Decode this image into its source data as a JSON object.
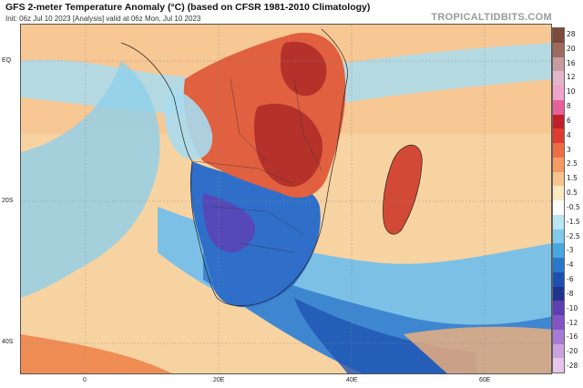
{
  "header": {
    "title": "GFS 2-meter Temperature Anomaly (°C) (based on CFSR 1981-2010 Climatology)",
    "subtitle": "Init: 06z Jul 10 2023   [Analysis]   valid at 06z Mon, Jul 10 2023",
    "watermark": "TROPICALTIDBITS.COM"
  },
  "map": {
    "lat_labels": [
      "EQ",
      "20S",
      "40S"
    ],
    "lon_labels": [
      "0",
      "20E",
      "40E",
      "60E"
    ],
    "palette": {
      "strong_warm": "#b5322a",
      "warm": "#e0603f",
      "mild_warm": "#f2a36d",
      "slight_warm": "#f8d3a2",
      "neutral": "#fdf4e3",
      "slight_cool": "#9fd9ec",
      "cool": "#4e98d6",
      "strong_cool": "#1f54b3",
      "very_cool": "#6a4fbf"
    }
  },
  "colorbar": {
    "labels": [
      "28",
      "20",
      "16",
      "12",
      "10",
      "8",
      "6",
      "4",
      "3",
      "2.5",
      "1.5",
      "0.5",
      "-0.5",
      "-1.5",
      "-2.5",
      "-3",
      "-4",
      "-6",
      "-8",
      "-10",
      "-12",
      "-16",
      "-20",
      "-28"
    ],
    "colors": [
      "#7a4a3c",
      "#9d6b5e",
      "#c79ba0",
      "#e3b5c8",
      "#f0a3cb",
      "#e8609a",
      "#c21f2b",
      "#df3b2f",
      "#ef6d45",
      "#f59a62",
      "#f7c48c",
      "#fbe8c4",
      "#fefefe",
      "#b9e6f2",
      "#7fcbe9",
      "#48a7df",
      "#2a78cc",
      "#1c50b0",
      "#22338f",
      "#5b3fb3",
      "#8454c4",
      "#a77ad3",
      "#c9a3dd",
      "#e6c6ea"
    ]
  }
}
